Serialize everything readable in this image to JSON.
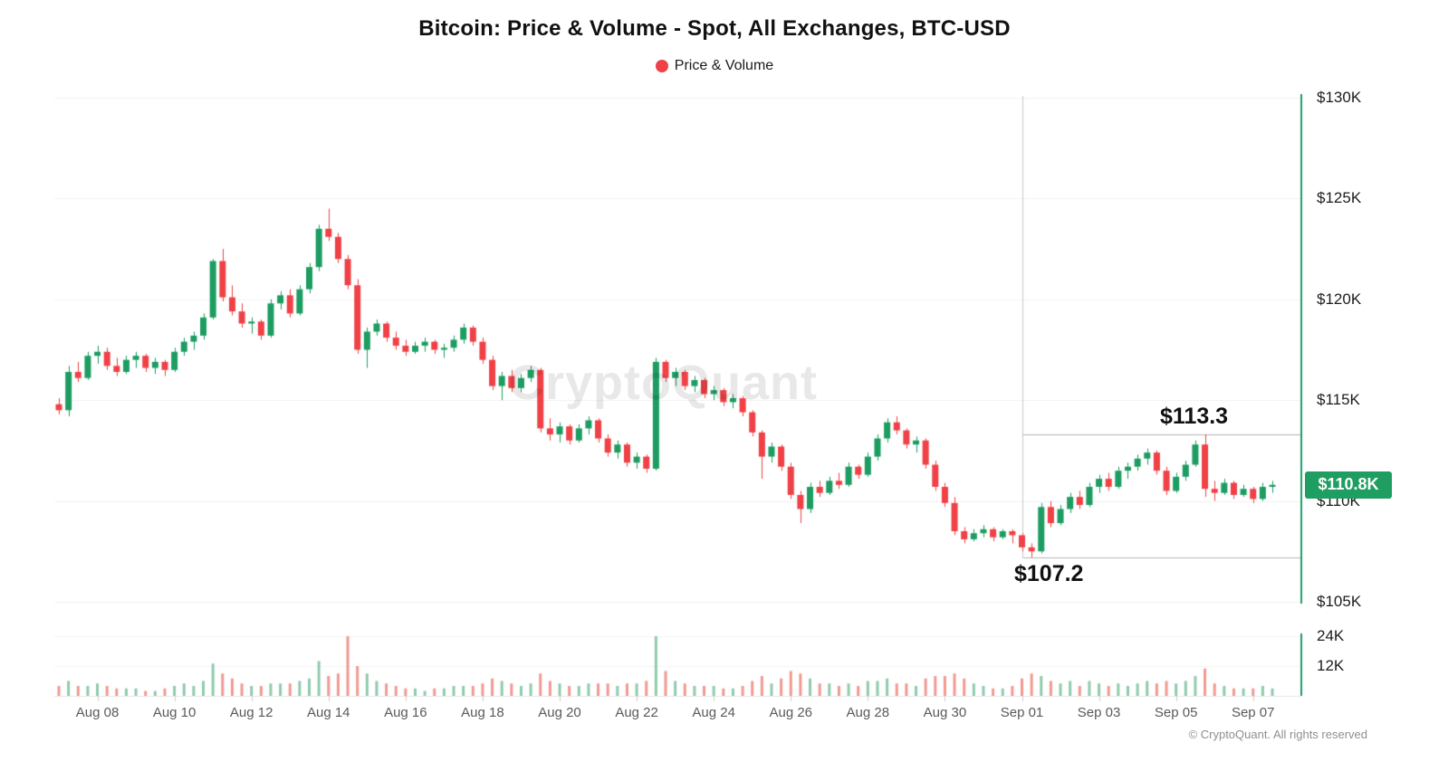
{
  "header": {
    "title": "Bitcoin: Price & Volume - Spot, All Exchanges, BTC-USD",
    "legend": [
      {
        "label": "Price & Volume",
        "color": "#ef4146"
      }
    ]
  },
  "watermark": "CryptoQuant",
  "footer": {
    "copyright": "© CryptoQuant. All rights reserved"
  },
  "chart_data": {
    "type": "candlestick+volume",
    "title": "Bitcoin: Price & Volume - Spot, All Exchanges, BTC-USD",
    "unit": "USD thousands",
    "y_axis": {
      "range": [
        105,
        130
      ],
      "ticks": [
        {
          "label": "$130K",
          "value": 130
        },
        {
          "label": "$125K",
          "value": 125
        },
        {
          "label": "$120K",
          "value": 120
        },
        {
          "label": "$115K",
          "value": 115
        },
        {
          "label": "$110K",
          "value": 110
        },
        {
          "label": "$105K",
          "value": 105
        }
      ]
    },
    "volume_axis": {
      "ticks": [
        {
          "label": "24K",
          "value": 24
        },
        {
          "label": "12K",
          "value": 12
        }
      ]
    },
    "x_ticks": [
      {
        "index": 4,
        "label": "Aug 08"
      },
      {
        "index": 12,
        "label": "Aug 10"
      },
      {
        "index": 20,
        "label": "Aug 12"
      },
      {
        "index": 28,
        "label": "Aug 14"
      },
      {
        "index": 36,
        "label": "Aug 16"
      },
      {
        "index": 44,
        "label": "Aug 18"
      },
      {
        "index": 52,
        "label": "Aug 20"
      },
      {
        "index": 60,
        "label": "Aug 22"
      },
      {
        "index": 68,
        "label": "Aug 24"
      },
      {
        "index": 76,
        "label": "Aug 26"
      },
      {
        "index": 84,
        "label": "Aug 28"
      },
      {
        "index": 92,
        "label": "Aug 30"
      },
      {
        "index": 100,
        "label": "Sep 01"
      },
      {
        "index": 108,
        "label": "Sep 03"
      },
      {
        "index": 116,
        "label": "Sep 05"
      },
      {
        "index": 124,
        "label": "Sep 07"
      }
    ],
    "annotations": {
      "high_line": {
        "label": "$113.3",
        "value": 113.3
      },
      "low_line": {
        "label": "$107.2",
        "value": 107.2
      },
      "vline_candle_index": 100,
      "last_price": {
        "label": "$110.8K",
        "value": 110.8
      }
    },
    "colors": {
      "up": "#1d9d62",
      "down": "#ef4146",
      "volume_up": "#8fcbad",
      "volume_down": "#f09a92",
      "axis_line": "#1d9d62",
      "badge_bg": "#1e9e60",
      "grid": "#f1f1f1",
      "annotation_line": "#b5b5b5",
      "vline": "#c8c8c8"
    },
    "candles_format": [
      "open",
      "high",
      "low",
      "close",
      "volume_k"
    ],
    "candles": [
      [
        114.8,
        115.1,
        114.3,
        114.5,
        4
      ],
      [
        114.5,
        116.7,
        114.2,
        116.4,
        6
      ],
      [
        116.4,
        116.9,
        115.9,
        116.1,
        4
      ],
      [
        116.1,
        117.4,
        116.0,
        117.2,
        4
      ],
      [
        117.2,
        117.7,
        116.8,
        117.4,
        5
      ],
      [
        117.4,
        117.6,
        116.5,
        116.7,
        4
      ],
      [
        116.7,
        117.1,
        116.2,
        116.4,
        3
      ],
      [
        116.4,
        117.2,
        116.3,
        117.0,
        3
      ],
      [
        117.0,
        117.4,
        116.6,
        117.2,
        3
      ],
      [
        117.2,
        117.3,
        116.4,
        116.6,
        2
      ],
      [
        116.6,
        117.1,
        116.3,
        116.9,
        2
      ],
      [
        116.9,
        117.0,
        116.2,
        116.5,
        3
      ],
      [
        116.5,
        117.6,
        116.4,
        117.4,
        4
      ],
      [
        117.4,
        118.1,
        117.2,
        117.9,
        5
      ],
      [
        117.9,
        118.4,
        117.5,
        118.2,
        4
      ],
      [
        118.2,
        119.3,
        118.0,
        119.1,
        6
      ],
      [
        119.1,
        122.0,
        119.0,
        121.9,
        13
      ],
      [
        121.9,
        122.5,
        119.9,
        120.1,
        9
      ],
      [
        120.1,
        120.7,
        119.2,
        119.4,
        7
      ],
      [
        119.4,
        119.8,
        118.6,
        118.8,
        5
      ],
      [
        118.8,
        119.1,
        118.3,
        118.9,
        4
      ],
      [
        118.9,
        119.0,
        118.0,
        118.2,
        4
      ],
      [
        118.2,
        120.0,
        118.1,
        119.8,
        5
      ],
      [
        119.8,
        120.4,
        119.5,
        120.2,
        5
      ],
      [
        120.2,
        120.5,
        119.1,
        119.3,
        5
      ],
      [
        119.3,
        120.7,
        119.2,
        120.5,
        6
      ],
      [
        120.5,
        121.8,
        120.3,
        121.6,
        7
      ],
      [
        121.6,
        123.7,
        121.4,
        123.5,
        14
      ],
      [
        123.5,
        124.5,
        122.9,
        123.1,
        8
      ],
      [
        123.1,
        123.3,
        121.8,
        122.0,
        9
      ],
      [
        122.0,
        122.2,
        120.5,
        120.7,
        24
      ],
      [
        120.7,
        121.0,
        117.3,
        117.5,
        12
      ],
      [
        117.5,
        118.6,
        116.6,
        118.4,
        9
      ],
      [
        118.4,
        119.0,
        118.2,
        118.8,
        6
      ],
      [
        118.8,
        118.9,
        117.9,
        118.1,
        5
      ],
      [
        118.1,
        118.4,
        117.5,
        117.7,
        4
      ],
      [
        117.7,
        118.0,
        117.2,
        117.4,
        3
      ],
      [
        117.4,
        117.9,
        117.3,
        117.7,
        3
      ],
      [
        117.7,
        118.1,
        117.4,
        117.9,
        2
      ],
      [
        117.9,
        118.0,
        117.3,
        117.5,
        3
      ],
      [
        117.5,
        117.8,
        117.1,
        117.6,
        3
      ],
      [
        117.6,
        118.2,
        117.4,
        118.0,
        4
      ],
      [
        118.0,
        118.8,
        117.8,
        118.6,
        4
      ],
      [
        118.6,
        118.7,
        117.7,
        117.9,
        4
      ],
      [
        117.9,
        118.1,
        116.8,
        117.0,
        5
      ],
      [
        117.0,
        117.2,
        115.5,
        115.7,
        7
      ],
      [
        115.7,
        116.4,
        115.0,
        116.2,
        6
      ],
      [
        116.2,
        116.5,
        115.4,
        115.6,
        5
      ],
      [
        115.6,
        116.3,
        115.4,
        116.1,
        4
      ],
      [
        116.1,
        116.7,
        115.9,
        116.5,
        5
      ],
      [
        116.5,
        116.6,
        113.4,
        113.6,
        9
      ],
      [
        113.6,
        114.1,
        113.0,
        113.3,
        6
      ],
      [
        113.3,
        113.9,
        112.9,
        113.7,
        5
      ],
      [
        113.7,
        113.8,
        112.8,
        113.0,
        4
      ],
      [
        113.0,
        113.8,
        112.9,
        113.6,
        4
      ],
      [
        113.6,
        114.2,
        113.3,
        114.0,
        5
      ],
      [
        114.0,
        114.1,
        112.9,
        113.1,
        5
      ],
      [
        113.1,
        113.3,
        112.2,
        112.4,
        5
      ],
      [
        112.4,
        113.0,
        112.1,
        112.8,
        4
      ],
      [
        112.8,
        112.9,
        111.7,
        111.9,
        5
      ],
      [
        111.9,
        112.4,
        111.6,
        112.2,
        5
      ],
      [
        112.2,
        112.3,
        111.4,
        111.6,
        6
      ],
      [
        111.6,
        117.1,
        111.5,
        116.9,
        24
      ],
      [
        116.9,
        117.0,
        115.9,
        116.1,
        10
      ],
      [
        116.1,
        116.6,
        115.7,
        116.4,
        6
      ],
      [
        116.4,
        116.5,
        115.5,
        115.7,
        5
      ],
      [
        115.7,
        116.2,
        115.4,
        116.0,
        4
      ],
      [
        116.0,
        116.1,
        115.1,
        115.3,
        4
      ],
      [
        115.3,
        115.7,
        115.0,
        115.5,
        4
      ],
      [
        115.5,
        115.6,
        114.7,
        114.9,
        3
      ],
      [
        114.9,
        115.3,
        114.6,
        115.1,
        3
      ],
      [
        115.1,
        115.2,
        114.2,
        114.4,
        4
      ],
      [
        114.4,
        114.5,
        113.2,
        113.4,
        6
      ],
      [
        113.4,
        113.5,
        111.1,
        112.2,
        8
      ],
      [
        112.2,
        112.9,
        111.9,
        112.7,
        5
      ],
      [
        112.7,
        112.8,
        111.5,
        111.7,
        7
      ],
      [
        111.7,
        111.9,
        110.1,
        110.3,
        10
      ],
      [
        110.3,
        110.5,
        108.9,
        109.6,
        9
      ],
      [
        109.6,
        110.9,
        109.4,
        110.7,
        7
      ],
      [
        110.7,
        111.0,
        110.2,
        110.4,
        5
      ],
      [
        110.4,
        111.2,
        110.3,
        111.0,
        5
      ],
      [
        111.0,
        111.4,
        110.6,
        110.8,
        4
      ],
      [
        110.8,
        111.9,
        110.7,
        111.7,
        5
      ],
      [
        111.7,
        111.8,
        111.1,
        111.3,
        4
      ],
      [
        111.3,
        112.4,
        111.2,
        112.2,
        6
      ],
      [
        112.2,
        113.3,
        112.0,
        113.1,
        6
      ],
      [
        113.1,
        114.1,
        112.9,
        113.9,
        7
      ],
      [
        113.9,
        114.2,
        113.3,
        113.5,
        5
      ],
      [
        113.5,
        113.6,
        112.6,
        112.8,
        5
      ],
      [
        112.8,
        113.2,
        112.4,
        113.0,
        4
      ],
      [
        113.0,
        113.1,
        111.6,
        111.8,
        7
      ],
      [
        111.8,
        112.0,
        110.5,
        110.7,
        8
      ],
      [
        110.7,
        110.9,
        109.7,
        109.9,
        8
      ],
      [
        109.9,
        110.2,
        108.3,
        108.5,
        9
      ],
      [
        108.5,
        108.7,
        107.9,
        108.1,
        7
      ],
      [
        108.1,
        108.6,
        108.0,
        108.4,
        5
      ],
      [
        108.4,
        108.8,
        108.2,
        108.6,
        4
      ],
      [
        108.6,
        108.7,
        108.0,
        108.2,
        3
      ],
      [
        108.2,
        108.6,
        108.1,
        108.5,
        3
      ],
      [
        108.5,
        108.6,
        107.9,
        108.3,
        4
      ],
      [
        108.3,
        108.4,
        107.5,
        107.7,
        7
      ],
      [
        107.7,
        107.9,
        107.2,
        107.5,
        9
      ],
      [
        107.5,
        109.9,
        107.4,
        109.7,
        8
      ],
      [
        109.7,
        110.0,
        108.7,
        108.9,
        6
      ],
      [
        108.9,
        109.8,
        108.8,
        109.6,
        5
      ],
      [
        109.6,
        110.4,
        109.4,
        110.2,
        6
      ],
      [
        110.2,
        110.5,
        109.6,
        109.8,
        4
      ],
      [
        109.8,
        110.9,
        109.7,
        110.7,
        6
      ],
      [
        110.7,
        111.3,
        110.4,
        111.1,
        5
      ],
      [
        111.1,
        111.4,
        110.5,
        110.7,
        4
      ],
      [
        110.7,
        111.7,
        110.6,
        111.5,
        5
      ],
      [
        111.5,
        111.9,
        111.1,
        111.7,
        4
      ],
      [
        111.7,
        112.3,
        111.5,
        112.1,
        5
      ],
      [
        112.1,
        112.6,
        111.8,
        112.4,
        6
      ],
      [
        112.4,
        112.5,
        111.3,
        111.5,
        5
      ],
      [
        111.5,
        111.7,
        110.3,
        110.5,
        6
      ],
      [
        110.5,
        111.4,
        110.4,
        111.2,
        5
      ],
      [
        111.2,
        112.0,
        111.0,
        111.8,
        6
      ],
      [
        111.8,
        113.0,
        111.7,
        112.8,
        8
      ],
      [
        112.8,
        113.3,
        110.2,
        110.6,
        11
      ],
      [
        110.6,
        111.0,
        110.0,
        110.4,
        5
      ],
      [
        110.4,
        111.1,
        110.3,
        110.9,
        4
      ],
      [
        110.9,
        111.0,
        110.1,
        110.3,
        3
      ],
      [
        110.3,
        110.8,
        110.2,
        110.6,
        3
      ],
      [
        110.6,
        110.7,
        109.9,
        110.1,
        3
      ],
      [
        110.1,
        110.9,
        110.0,
        110.7,
        4
      ],
      [
        110.7,
        111.0,
        110.4,
        110.8,
        3
      ]
    ]
  }
}
